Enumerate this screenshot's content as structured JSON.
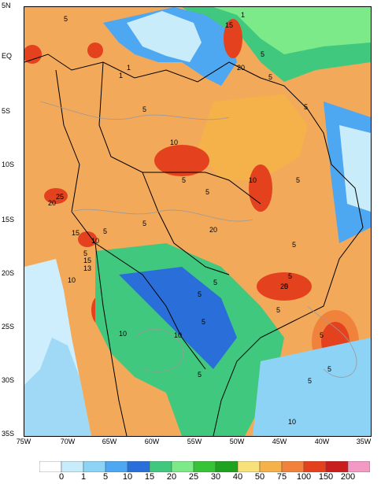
{
  "map": {
    "lat_labels": [
      "5N",
      "EQ",
      "5S",
      "10S",
      "15S",
      "20S",
      "25S",
      "30S",
      "35S"
    ],
    "lon_labels": [
      "75W",
      "70W",
      "65W",
      "60W",
      "55W",
      "50W",
      "45W",
      "40W",
      "35W"
    ],
    "contour_labels": [
      "1",
      "15",
      "5",
      "20",
      "5",
      "1",
      "5",
      "5",
      "10",
      "5",
      "10",
      "5",
      "5",
      "25",
      "20",
      "5",
      "15",
      "10",
      "5",
      "5",
      "10",
      "15",
      "13",
      "10",
      "5",
      "20",
      "5",
      "5",
      "5",
      "10",
      "5",
      "5",
      "10",
      "20",
      "5",
      "5",
      "5",
      "5",
      "5",
      "1",
      "5"
    ]
  },
  "legend": {
    "labels": [
      "0",
      "1",
      "5",
      "10",
      "15",
      "20",
      "25",
      "30",
      "40",
      "50",
      "75",
      "100",
      "150",
      "200"
    ],
    "colors": [
      "#ffffff",
      "#c9ecfb",
      "#8dd3f6",
      "#4da7f1",
      "#2a6fd9",
      "#41c87f",
      "#7dea8a",
      "#36c336",
      "#1fa21f",
      "#f7e27a",
      "#f5b14a",
      "#f0823b",
      "#e4421f",
      "#c81e1e",
      "#f39ac4"
    ]
  }
}
